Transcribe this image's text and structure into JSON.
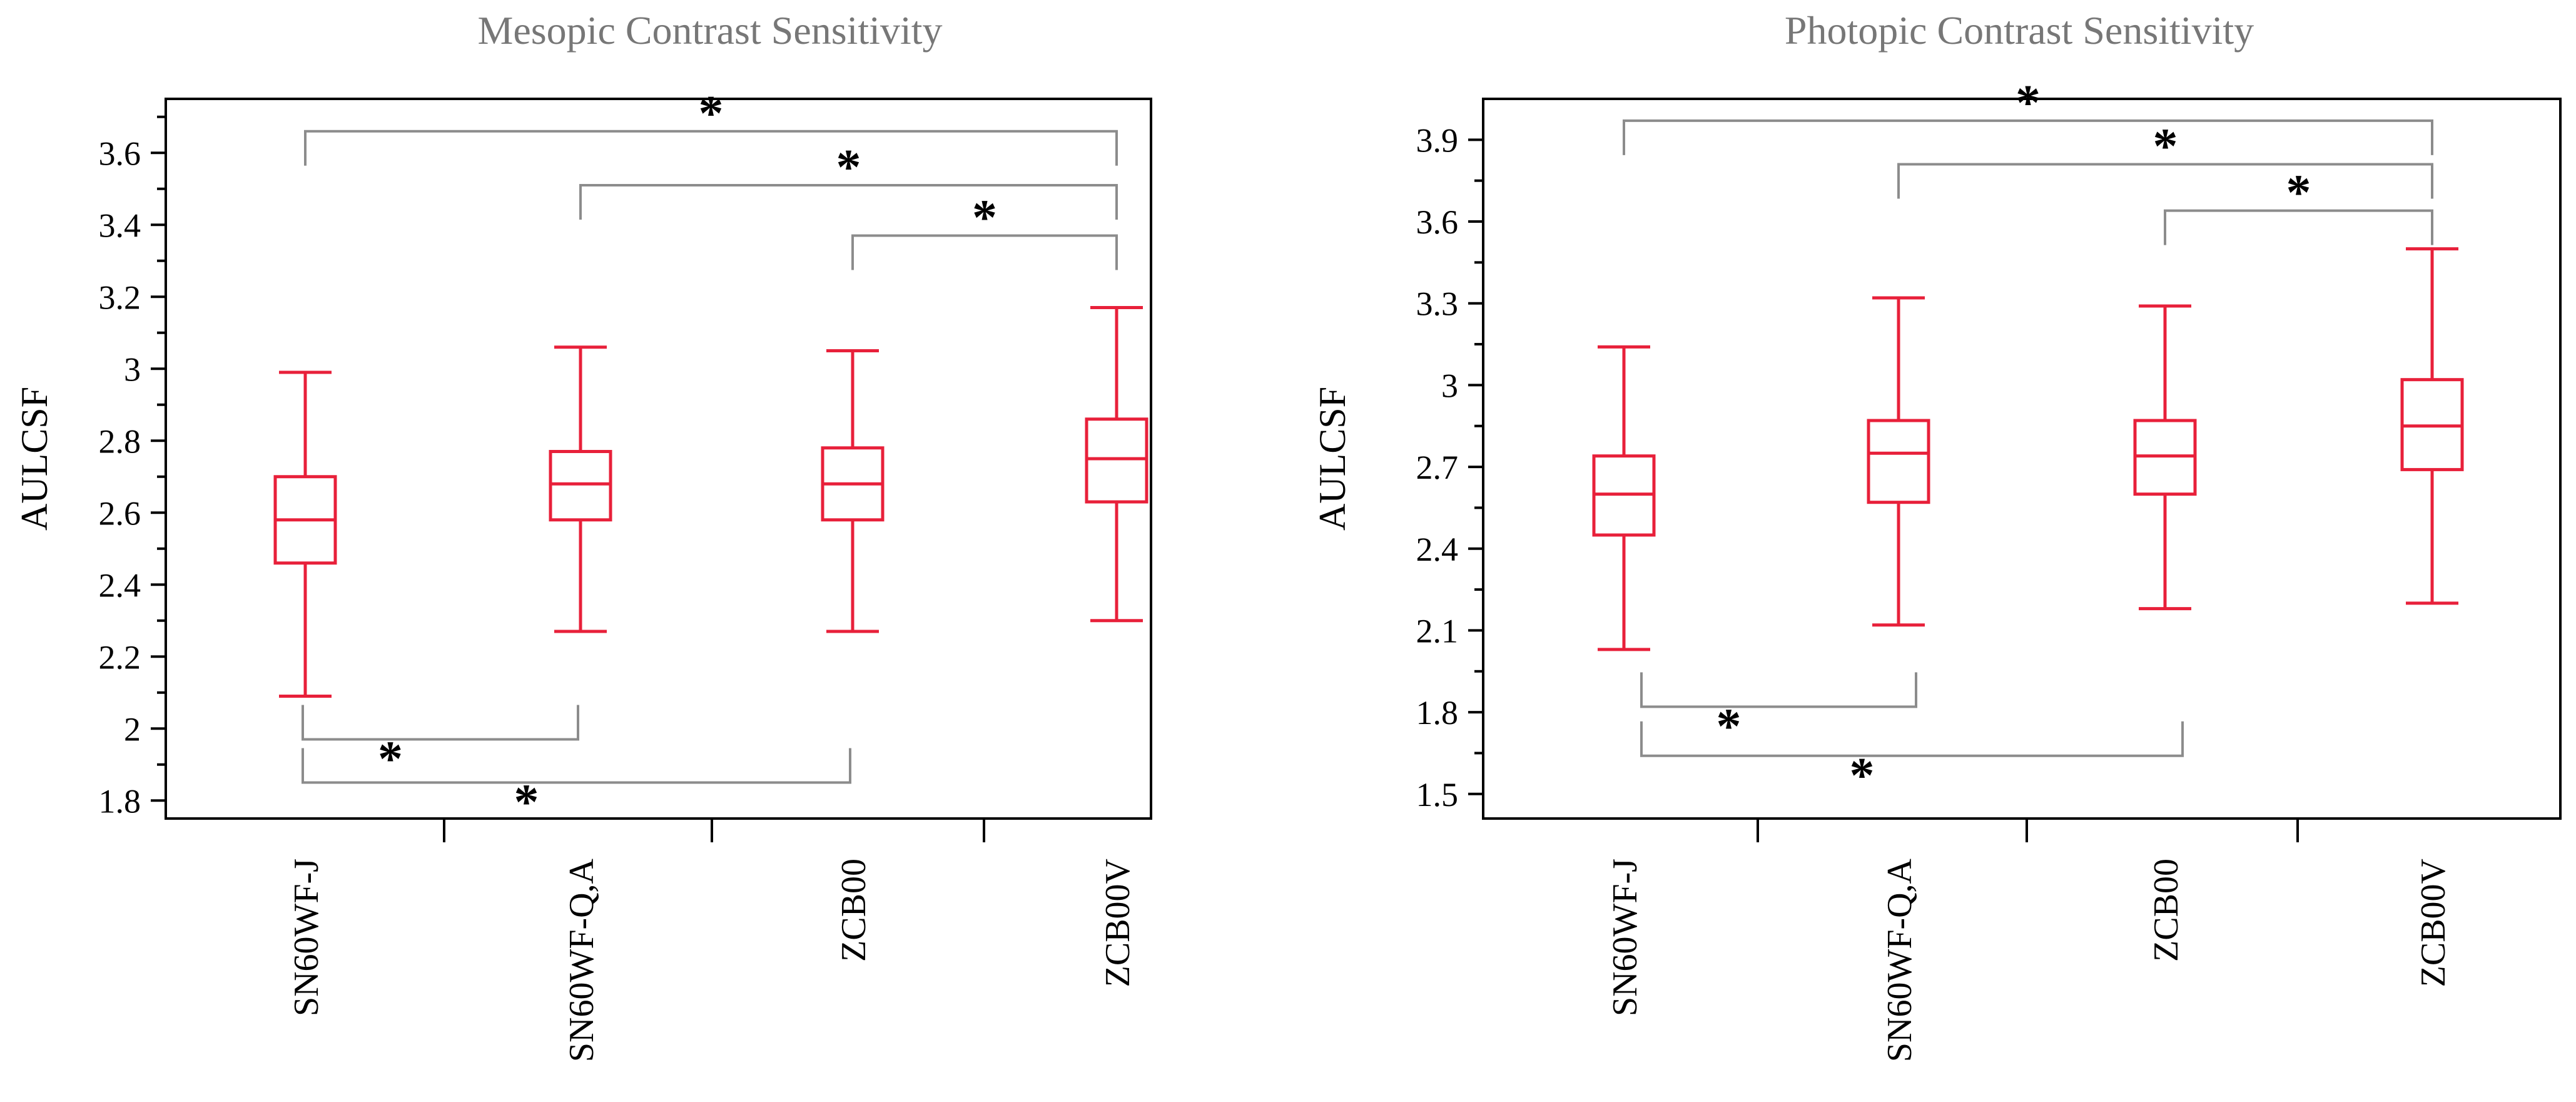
{
  "chart_data": [
    {
      "type": "boxplot",
      "title": "Mesopic Contrast Sensitivity",
      "ylabel": "AULCSF",
      "xlabel": "",
      "ylim": [
        1.75,
        3.75
      ],
      "yticks": [
        "1.8",
        "2",
        "2.2",
        "2.4",
        "2.6",
        "2.8",
        "3",
        "3.2",
        "3.4",
        "3.6"
      ],
      "categories": [
        "SN60WF-J",
        "SN60WF-Q,A",
        "ZCB00",
        "ZCB00V"
      ],
      "boxes": [
        {
          "min": 2.09,
          "q1": 2.46,
          "median": 2.58,
          "q3": 2.7,
          "max": 2.99
        },
        {
          "min": 2.27,
          "q1": 2.58,
          "median": 2.68,
          "q3": 2.77,
          "max": 3.06
        },
        {
          "min": 2.27,
          "q1": 2.58,
          "median": 2.68,
          "q3": 2.78,
          "max": 3.05
        },
        {
          "min": 2.3,
          "q1": 2.63,
          "median": 2.75,
          "q3": 2.86,
          "max": 3.17
        }
      ],
      "significance_top": [
        {
          "from": 0,
          "to": 3,
          "y": 3.66,
          "label": "*"
        },
        {
          "from": 1,
          "to": 3,
          "y": 3.51,
          "label": "*"
        },
        {
          "from": 2,
          "to": 3,
          "y": 3.37,
          "label": "*"
        }
      ],
      "significance_bottom": [
        {
          "from": 0,
          "to": 1,
          "y": 1.97,
          "label": "*"
        },
        {
          "from": 0,
          "to": 2,
          "y": 1.85,
          "label": "*"
        }
      ]
    },
    {
      "type": "boxplot",
      "title": "Photopic Contrast Sensitivity",
      "ylabel": "AULCSF",
      "xlabel": "",
      "ylim": [
        1.41,
        4.05
      ],
      "yticks": [
        "1.5",
        "1.8",
        "2.1",
        "2.4",
        "2.7",
        "3",
        "3.3",
        "3.6",
        "3.9"
      ],
      "categories": [
        "SN60WF-J",
        "SN60WF-Q,A",
        "ZCB00",
        "ZCB00V"
      ],
      "boxes": [
        {
          "min": 2.03,
          "q1": 2.45,
          "median": 2.6,
          "q3": 2.74,
          "max": 3.14
        },
        {
          "min": 2.12,
          "q1": 2.57,
          "median": 2.75,
          "q3": 2.87,
          "max": 3.32
        },
        {
          "min": 2.18,
          "q1": 2.6,
          "median": 2.74,
          "q3": 2.87,
          "max": 3.29
        },
        {
          "min": 2.2,
          "q1": 2.69,
          "median": 2.85,
          "q3": 3.02,
          "max": 3.5
        }
      ],
      "significance_top": [
        {
          "from": 0,
          "to": 3,
          "y": 3.97,
          "label": "*"
        },
        {
          "from": 1,
          "to": 3,
          "y": 3.81,
          "label": "*"
        },
        {
          "from": 2,
          "to": 3,
          "y": 3.64,
          "label": "*"
        }
      ],
      "significance_bottom": [
        {
          "from": 0,
          "to": 1,
          "y": 1.82,
          "label": "*"
        },
        {
          "from": 0,
          "to": 2,
          "y": 1.64,
          "label": "*"
        }
      ]
    }
  ]
}
